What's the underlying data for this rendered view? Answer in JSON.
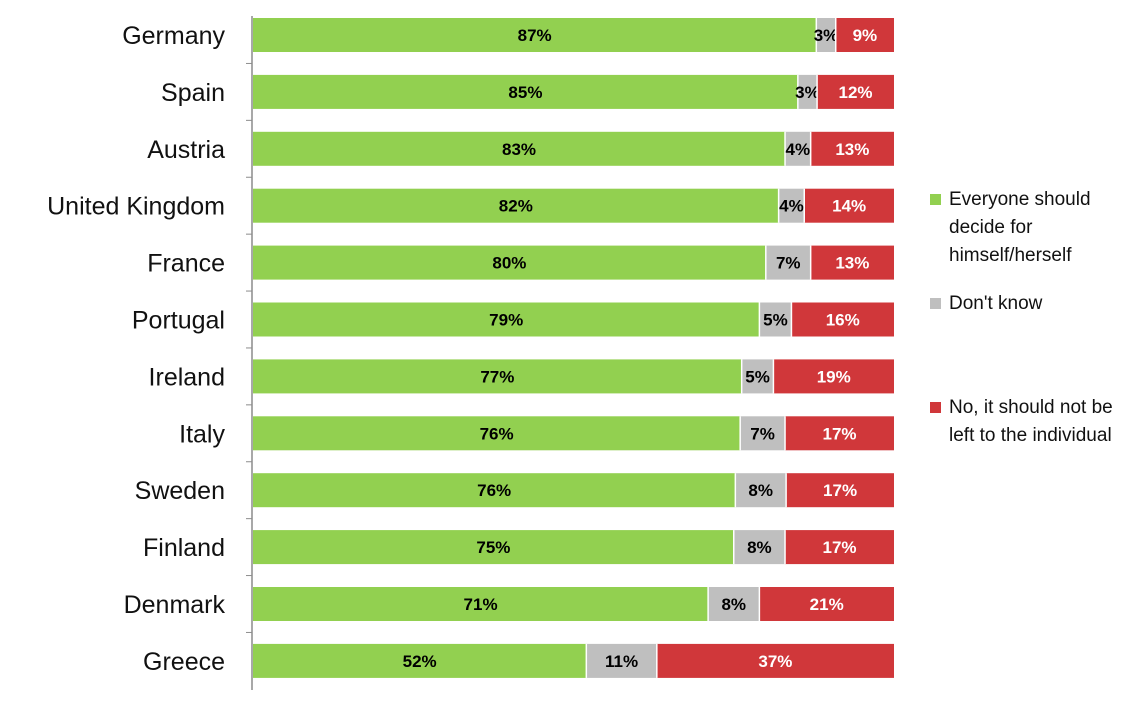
{
  "chart_data": {
    "type": "bar",
    "orientation": "horizontal",
    "stacked": true,
    "categories": [
      "Germany",
      "Spain",
      "Austria",
      "United Kingdom",
      "France",
      "Portugal",
      "Ireland",
      "Italy",
      "Sweden",
      "Finland",
      "Denmark",
      "Greece"
    ],
    "series": [
      {
        "name": "Everyone should decide for himself/herself",
        "color": "#92d050",
        "label_color": "#000000",
        "values": [
          87,
          85,
          83,
          82,
          80,
          79,
          77,
          76,
          76,
          75,
          71,
          52
        ],
        "labels": [
          "87%",
          "85%",
          "83%",
          "82%",
          "80%",
          "79%",
          "77%",
          "76%",
          "76%",
          "75%",
          "71%",
          "52%"
        ]
      },
      {
        "name": "Don't know",
        "color": "#bfbfbf",
        "label_color": "#000000",
        "values": [
          3,
          3,
          4,
          4,
          7,
          5,
          5,
          7,
          8,
          8,
          8,
          11
        ],
        "labels": [
          "3%",
          "3%",
          "4%",
          "4%",
          "7%",
          "5%",
          "5%",
          "7%",
          "8%",
          "8%",
          "8%",
          "11%"
        ]
      },
      {
        "name": "No, it should not be left to the individual",
        "color": "#d0373a",
        "label_color": "#ffffff",
        "values": [
          9,
          12,
          13,
          14,
          13,
          16,
          19,
          17,
          17,
          17,
          21,
          37
        ],
        "labels": [
          "9%",
          "12%",
          "13%",
          "14%",
          "13%",
          "16%",
          "19%",
          "17%",
          "17%",
          "17%",
          "21%",
          "37%"
        ]
      }
    ],
    "xlim": [
      0,
      100
    ],
    "grid": false,
    "legend_position": "right"
  }
}
